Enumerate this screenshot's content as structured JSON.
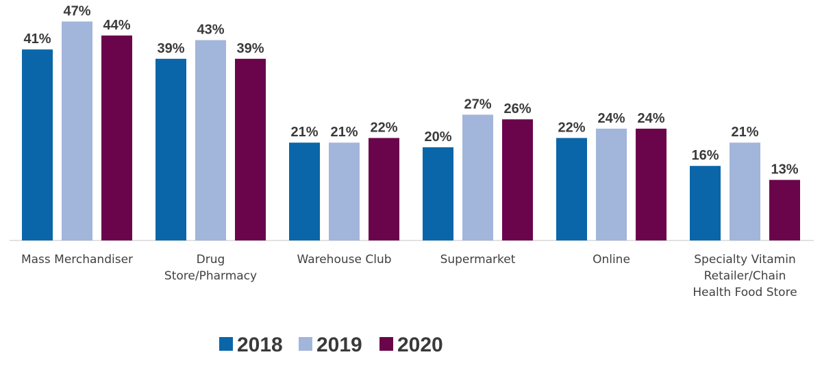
{
  "chart_data": {
    "type": "bar",
    "categories": [
      [
        "Mass Merchandiser"
      ],
      [
        "Drug",
        "Store/Pharmacy"
      ],
      [
        "Warehouse Club"
      ],
      [
        "Supermarket"
      ],
      [
        "Online"
      ],
      [
        "Specialty Vitamin",
        "Retailer/Chain",
        "Health Food Store"
      ]
    ],
    "series": [
      {
        "name": "2018",
        "color": "#0a66a8",
        "values": [
          41,
          39,
          21,
          20,
          22,
          16
        ]
      },
      {
        "name": "2019",
        "color": "#a2b5da",
        "values": [
          47,
          43,
          21,
          27,
          24,
          21
        ]
      },
      {
        "name": "2020",
        "color": "#6b054b",
        "values": [
          44,
          39,
          22,
          26,
          24,
          13
        ]
      }
    ],
    "value_format": "%",
    "ylim": [
      0,
      50
    ],
    "grid": false,
    "legend_position": "bottom-center",
    "axis_line_color": "#d9d9d9"
  }
}
